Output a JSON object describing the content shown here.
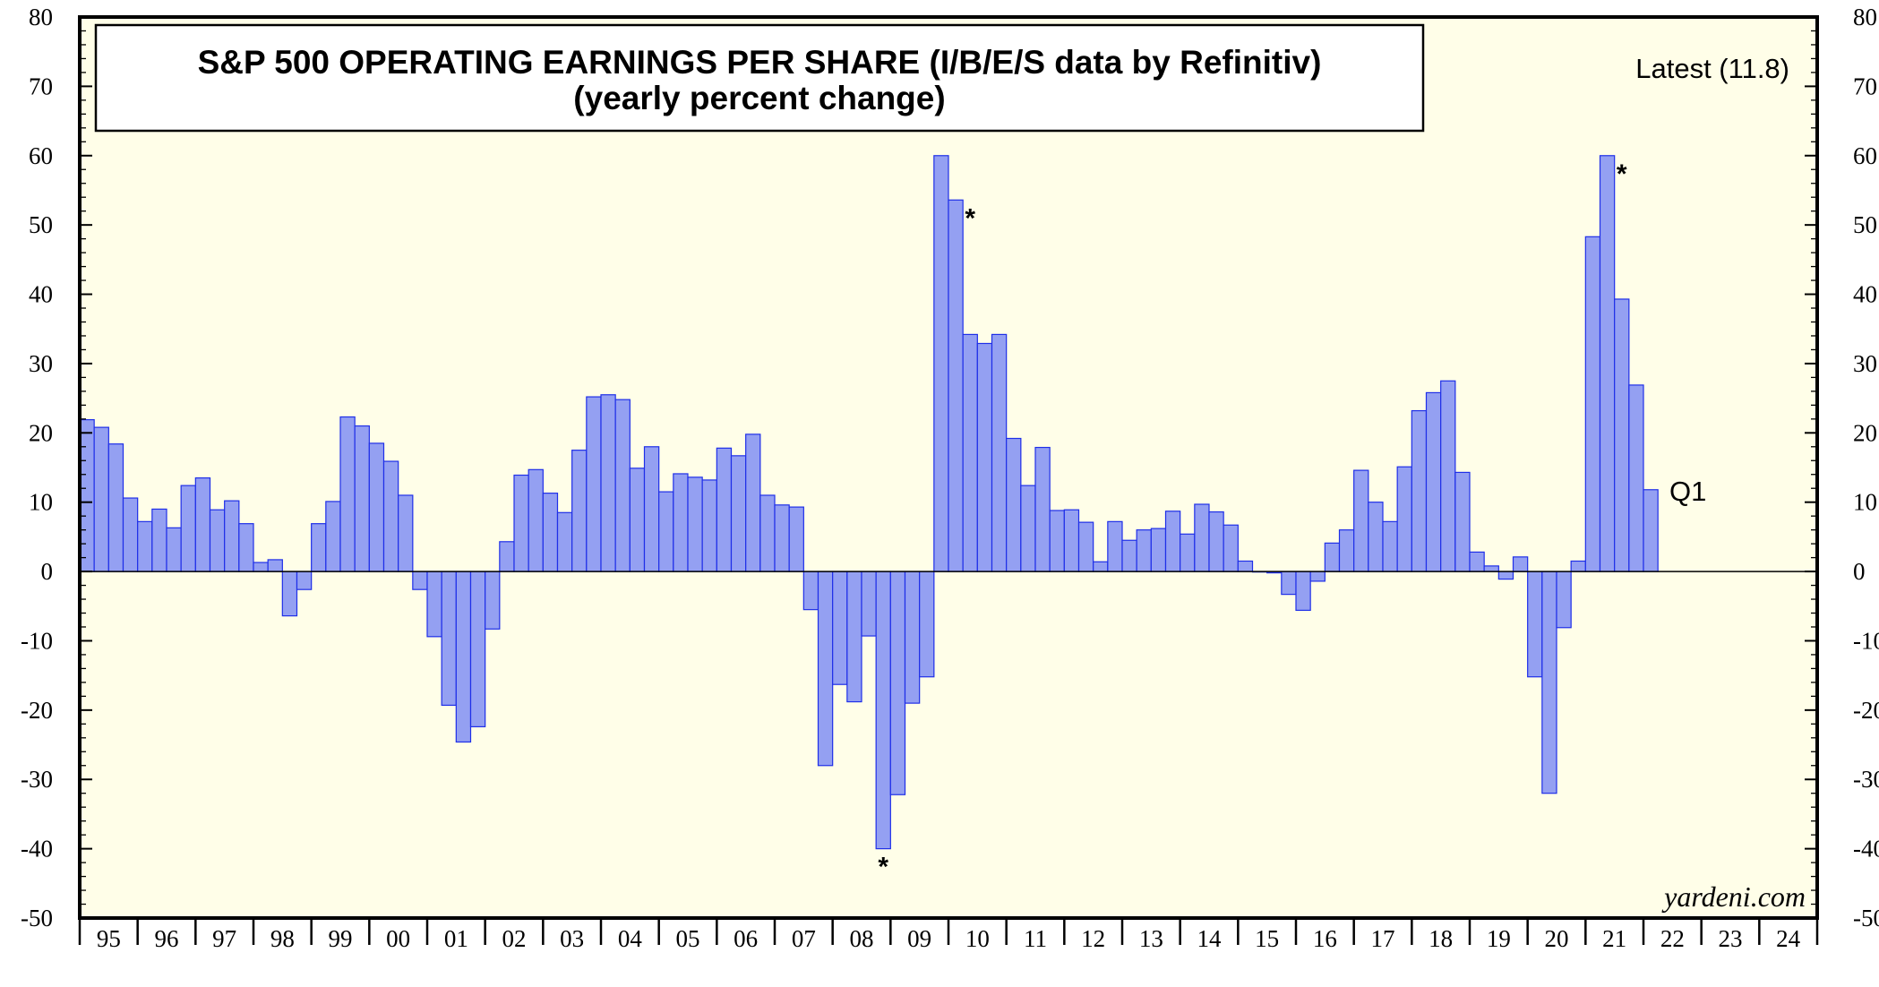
{
  "chart_data": {
    "type": "bar",
    "title": "S&P 500 OPERATING EARNINGS PER SHARE (I/B/E/S data by Refinitiv)",
    "subtitle": "(yearly percent change)",
    "latest_label": "Latest (11.8)",
    "latest_quarter_label": "Q1",
    "source": "yardeni.com",
    "ylim": [
      -50,
      80
    ],
    "y_ticks": [
      80,
      70,
      60,
      50,
      40,
      30,
      20,
      10,
      0,
      -10,
      -20,
      -30,
      -40,
      -50
    ],
    "x_tick_labels": [
      "95",
      "96",
      "97",
      "98",
      "99",
      "00",
      "01",
      "02",
      "03",
      "04",
      "05",
      "06",
      "07",
      "08",
      "09",
      "10",
      "11",
      "12",
      "13",
      "14",
      "15",
      "16",
      "17",
      "18",
      "19",
      "20",
      "21",
      "22",
      "23",
      "24"
    ],
    "frequency": "quarterly",
    "start": "1995-Q1",
    "end": "2022-Q1",
    "values": [
      21.9,
      20.8,
      18.4,
      10.6,
      7.2,
      9.0,
      6.3,
      12.4,
      13.5,
      8.9,
      10.2,
      6.9,
      1.3,
      1.7,
      -6.4,
      -2.6,
      6.9,
      10.1,
      22.3,
      21.0,
      18.5,
      15.9,
      11.0,
      -2.6,
      -9.4,
      -19.3,
      -24.6,
      -22.4,
      -8.3,
      4.3,
      13.9,
      14.7,
      11.3,
      8.5,
      17.5,
      25.2,
      25.5,
      24.8,
      14.9,
      18.0,
      11.5,
      14.1,
      13.6,
      13.2,
      17.8,
      16.7,
      19.8,
      11.0,
      9.6,
      9.3,
      -5.5,
      -28.0,
      -16.3,
      -18.8,
      -9.3,
      -40.0,
      -32.2,
      -19.0,
      -15.2,
      60.0,
      53.6,
      34.2,
      32.9,
      34.2,
      19.2,
      12.4,
      17.9,
      8.8,
      8.9,
      7.1,
      1.4,
      7.2,
      4.5,
      6.0,
      6.2,
      8.7,
      5.4,
      9.7,
      8.6,
      6.7,
      1.5,
      0.0,
      -0.2,
      -3.3,
      -5.6,
      -1.4,
      4.1,
      6.0,
      14.6,
      10.0,
      7.2,
      15.1,
      23.2,
      25.8,
      27.5,
      14.3,
      2.8,
      0.8,
      -1.1,
      2.1,
      -15.2,
      -32.0,
      -8.1,
      1.5,
      48.3,
      60.0,
      39.3,
      26.9,
      11.8
    ],
    "markers": [
      {
        "label": "*",
        "quarter": "2008-Q4"
      },
      {
        "label": "*",
        "quarter": "2010-Q1"
      },
      {
        "label": "*",
        "quarter": "2021-Q2"
      }
    ],
    "colors": {
      "background": "#FFFEE8",
      "bar_fill": "#94A0F2",
      "bar_stroke": "#1F2FE8",
      "frame": "#000000"
    }
  }
}
